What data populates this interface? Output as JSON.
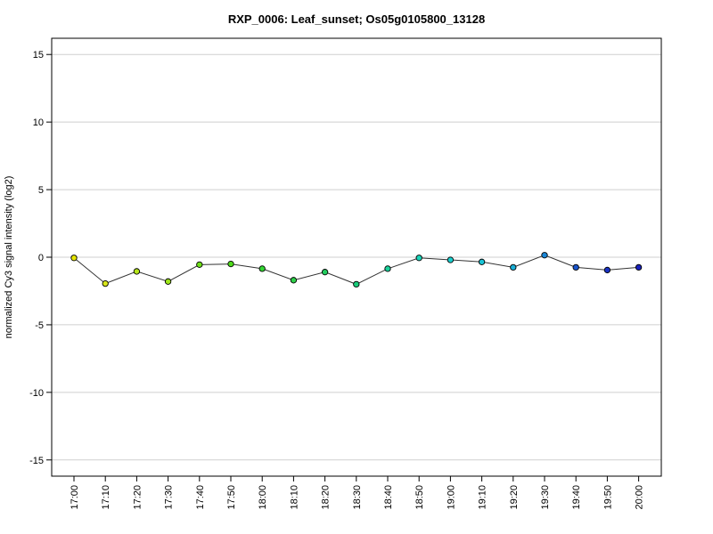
{
  "chart_data": {
    "type": "line",
    "title": "RXP_0006: Leaf_sunset; Os05g0105800_13128",
    "xlabel": "",
    "ylabel": "normalized Cy3 signal intensity (log2)",
    "ylim": [
      -16.2,
      16.2
    ],
    "yticks": [
      -15,
      -10,
      -5,
      0,
      5,
      10,
      15
    ],
    "ytick_labels": [
      "-15",
      "-10",
      "-5",
      "0",
      "5",
      "10",
      "15"
    ],
    "grid": true,
    "categories": [
      "17:00",
      "17:10",
      "17:20",
      "17:30",
      "17:40",
      "17:50",
      "18:00",
      "18:10",
      "18:20",
      "18:30",
      "18:40",
      "18:50",
      "19:00",
      "19:10",
      "19:20",
      "19:30",
      "19:40",
      "19:50",
      "20:00"
    ],
    "series": [
      {
        "values": [
          -0.05,
          -1.95,
          -1.05,
          -1.8,
          -0.55,
          -0.5,
          -0.85,
          -1.7,
          -1.1,
          -2.0,
          -0.85,
          -0.05,
          -0.2,
          -0.35,
          -0.75,
          0.15,
          -0.75,
          -0.95,
          -0.75
        ],
        "line_color": "#333333",
        "point_colors": [
          "#e6e600",
          "#d8e61a",
          "#b6e61a",
          "#9ee61a",
          "#6fe01a",
          "#4fdc1a",
          "#33d633",
          "#2ed04a",
          "#22cc5e",
          "#1acc7a",
          "#1ad09a",
          "#1ad6bb",
          "#1ad0cf",
          "#1ac4d6",
          "#1aaed6",
          "#1a86d6",
          "#1a55cc",
          "#1a33c2",
          "#1a22bb"
        ]
      }
    ]
  }
}
